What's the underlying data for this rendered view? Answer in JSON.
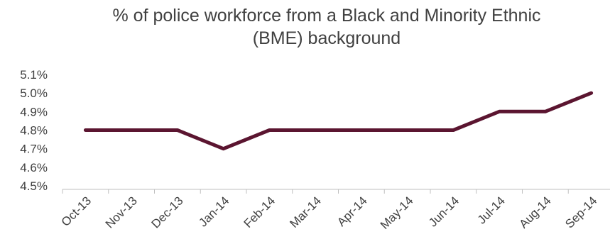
{
  "chart_data": {
    "type": "line",
    "title_lines": [
      "% of police workforce from a Black and Minority Ethnic",
      "(BME) background"
    ],
    "categories": [
      "Oct-13",
      "Nov-13",
      "Dec-13",
      "Jan-14",
      "Feb-14",
      "Mar-14",
      "Apr-14",
      "May-14",
      "Jun-14",
      "Jul-14",
      "Aug-14",
      "Sep-14"
    ],
    "series": [
      {
        "values": [
          4.8,
          4.8,
          4.8,
          4.7,
          4.8,
          4.8,
          4.8,
          4.8,
          4.8,
          4.9,
          4.9,
          5.0
        ],
        "color": "#5b1530"
      }
    ],
    "yticks": [
      "4.5%",
      "4.6%",
      "4.7%",
      "4.8%",
      "4.9%",
      "5.0%",
      "5.1%"
    ],
    "ylim": [
      4.5,
      5.1
    ],
    "grid": false,
    "legend": "none"
  }
}
